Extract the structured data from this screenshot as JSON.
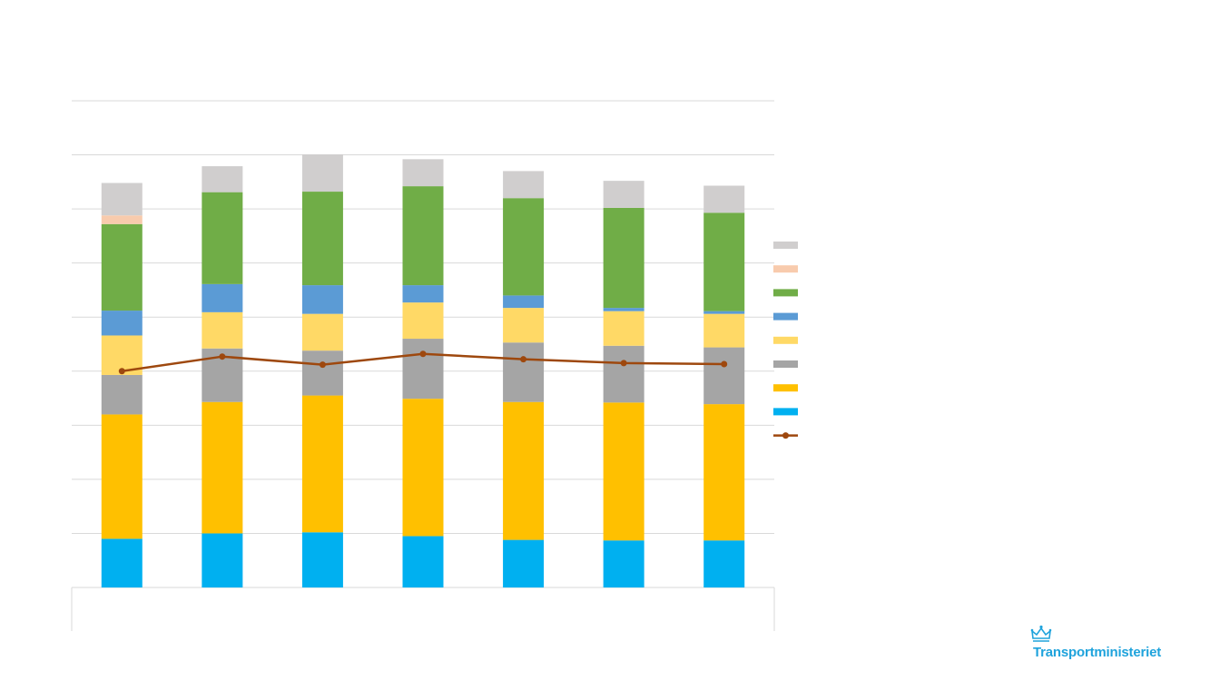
{
  "logo": {
    "text": "Transportministeriet",
    "color": "#1fa3dc"
  },
  "colors": {
    "grid": "#d9d9d9",
    "line": "#9e480e"
  },
  "chart_data": {
    "type": "bar",
    "stacked": true,
    "categories": [
      "",
      "",
      "",
      "",
      "",
      "",
      ""
    ],
    "ylim": [
      0,
      9
    ],
    "grid": true,
    "legend_position": "right",
    "series": [
      {
        "color": "#00b0f0",
        "values": [
          0.9,
          1.0,
          1.02,
          0.95,
          0.88,
          0.87,
          0.87
        ]
      },
      {
        "color": "#ffc000",
        "values": [
          2.3,
          2.43,
          2.53,
          2.54,
          2.55,
          2.55,
          2.52
        ]
      },
      {
        "color": "#a5a5a5",
        "values": [
          0.73,
          0.99,
          0.83,
          1.11,
          1.1,
          1.05,
          1.05
        ]
      },
      {
        "color": "#ffd966",
        "values": [
          0.73,
          0.67,
          0.68,
          0.67,
          0.64,
          0.64,
          0.62
        ]
      },
      {
        "color": "#5b9bd5",
        "values": [
          0.46,
          0.52,
          0.53,
          0.32,
          0.23,
          0.06,
          0.05
        ]
      },
      {
        "color": "#70ad47",
        "values": [
          1.6,
          1.7,
          1.73,
          1.83,
          1.8,
          1.85,
          1.82
        ]
      },
      {
        "color": "#f8cbad",
        "values": [
          0.16,
          0.0,
          0.0,
          0.0,
          0.0,
          0.0,
          0.0
        ]
      },
      {
        "color": "#d0cece",
        "values": [
          0.6,
          0.48,
          0.69,
          0.5,
          0.5,
          0.5,
          0.5
        ]
      }
    ],
    "line_series": {
      "type": "line",
      "color": "#9e480e",
      "values": [
        4.0,
        4.27,
        4.12,
        4.32,
        4.22,
        4.15,
        4.13
      ]
    }
  }
}
